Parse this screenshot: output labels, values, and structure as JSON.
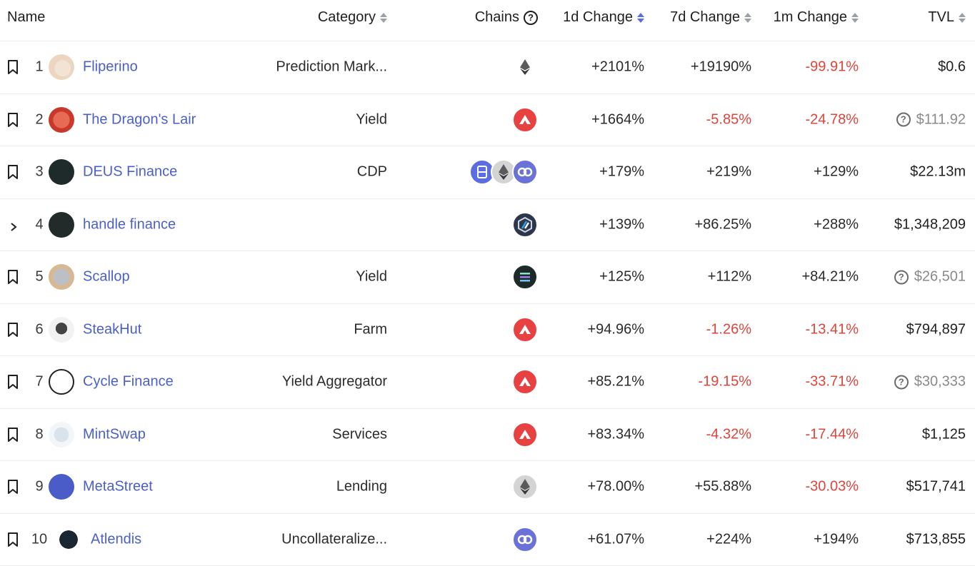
{
  "header": {
    "name": "Name",
    "category": "Category",
    "chains": "Chains",
    "d1": "1d Change",
    "d7": "7d Change",
    "m1": "1m Change",
    "tvl": "TVL",
    "chains_help_icon": "question-circle-icon"
  },
  "colors": {
    "link": "#4a5fc7",
    "negative": "#e0443a",
    "positive": "#2a2a2a",
    "avalanche": "#e84142",
    "fantom": "#5b6ee1",
    "ethereum": "#c8c8c8",
    "polygon": "#6a72d8",
    "arbitrum": "#2d374b",
    "solana": "#1e2a2a"
  },
  "rows": [
    {
      "rank": "1",
      "name": "Fliperino",
      "category": "Prediction Mark...",
      "chains": [
        "ethereum-icon"
      ],
      "d1": "+2101%",
      "d7": "+19190%",
      "m1": "-99.91%",
      "tvl": "$0.6",
      "tvl_flag": false,
      "expand": false
    },
    {
      "rank": "2",
      "name": "The Dragon's Lair",
      "category": "Yield",
      "chains": [
        "avalanche-icon"
      ],
      "d1": "+1664%",
      "d7": "-5.85%",
      "m1": "-24.78%",
      "tvl": "$111.92",
      "tvl_flag": true,
      "expand": false
    },
    {
      "rank": "3",
      "name": "DEUS Finance",
      "category": "CDP",
      "chains": [
        "fantom-icon",
        "ethereum-icon",
        "polygon-icon"
      ],
      "d1": "+179%",
      "d7": "+219%",
      "m1": "+129%",
      "tvl": "$22.13m",
      "tvl_flag": false,
      "expand": false
    },
    {
      "rank": "4",
      "name": "handle finance",
      "category": "",
      "chains": [
        "arbitrum-icon"
      ],
      "d1": "+139%",
      "d7": "+86.25%",
      "m1": "+288%",
      "tvl": "$1,348,209",
      "tvl_flag": false,
      "expand": true
    },
    {
      "rank": "5",
      "name": "Scallop",
      "category": "Yield",
      "chains": [
        "solana-icon"
      ],
      "d1": "+125%",
      "d7": "+112%",
      "m1": "+84.21%",
      "tvl": "$26,501",
      "tvl_flag": true,
      "expand": false
    },
    {
      "rank": "6",
      "name": "SteakHut",
      "category": "Farm",
      "chains": [
        "avalanche-icon"
      ],
      "d1": "+94.96%",
      "d7": "-1.26%",
      "m1": "-13.41%",
      "tvl": "$794,897",
      "tvl_flag": false,
      "expand": false
    },
    {
      "rank": "7",
      "name": "Cycle Finance",
      "category": "Yield Aggregator",
      "chains": [
        "avalanche-icon"
      ],
      "d1": "+85.21%",
      "d7": "-19.15%",
      "m1": "-33.71%",
      "tvl": "$30,333",
      "tvl_flag": true,
      "expand": false
    },
    {
      "rank": "8",
      "name": "MintSwap",
      "category": "Services",
      "chains": [
        "avalanche-icon"
      ],
      "d1": "+83.34%",
      "d7": "-4.32%",
      "m1": "-17.44%",
      "tvl": "$1,125",
      "tvl_flag": false,
      "expand": false
    },
    {
      "rank": "9",
      "name": "MetaStreet",
      "category": "Lending",
      "chains": [
        "ethereum-icon"
      ],
      "d1": "+78.00%",
      "d7": "+55.88%",
      "m1": "-30.03%",
      "tvl": "$517,741",
      "tvl_flag": false,
      "expand": false
    },
    {
      "rank": "10",
      "name": "Atlendis",
      "category": "Uncollateralize...",
      "chains": [
        "polygon-icon"
      ],
      "d1": "+61.07%",
      "d7": "+224%",
      "m1": "+194%",
      "tvl": "$713,855",
      "tvl_flag": false,
      "expand": false
    }
  ]
}
